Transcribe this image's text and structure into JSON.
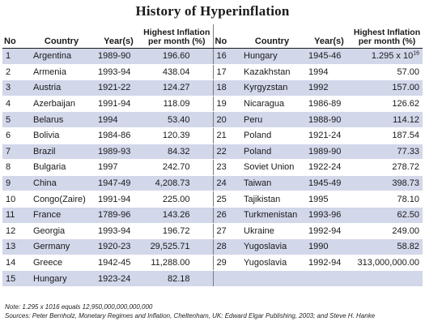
{
  "title": "History of Hyperinflation",
  "headers": {
    "no": "No",
    "country": "Country",
    "years": "Year(s)",
    "inflation_line1": "Highest Inflation",
    "inflation_line2": "per month (%)"
  },
  "rows_left": [
    {
      "no": "1",
      "country": "Argentina",
      "years": "1989-90",
      "rate": "196.60"
    },
    {
      "no": "2",
      "country": "Armenia",
      "years": "1993-94",
      "rate": "438.04"
    },
    {
      "no": "3",
      "country": "Austria",
      "years": "1921-22",
      "rate": "124.27"
    },
    {
      "no": "4",
      "country": "Azerbaijan",
      "years": "1991-94",
      "rate": "118.09"
    },
    {
      "no": "5",
      "country": "Belarus",
      "years": "1994",
      "rate": "53.40"
    },
    {
      "no": "6",
      "country": "Bolivia",
      "years": "1984-86",
      "rate": "120.39"
    },
    {
      "no": "7",
      "country": "Brazil",
      "years": "1989-93",
      "rate": "84.32"
    },
    {
      "no": "8",
      "country": "Bulgaria",
      "years": "1997",
      "rate": "242.70"
    },
    {
      "no": "9",
      "country": "China",
      "years": "1947-49",
      "rate": "4,208.73"
    },
    {
      "no": "10",
      "country": "Congo(Zaire)",
      "years": "1991-94",
      "rate": "225.00"
    },
    {
      "no": "11",
      "country": "France",
      "years": "1789-96",
      "rate": "143.26"
    },
    {
      "no": "12",
      "country": "Georgia",
      "years": "1993-94",
      "rate": "196.72"
    },
    {
      "no": "13",
      "country": "Germany",
      "years": "1920-23",
      "rate": "29,525.71"
    },
    {
      "no": "14",
      "country": "Greece",
      "years": "1942-45",
      "rate": "11,288.00"
    },
    {
      "no": "15",
      "country": "Hungary",
      "years": "1923-24",
      "rate": "82.18"
    }
  ],
  "rows_right": [
    {
      "no": "16",
      "country": "Hungary",
      "years": "1945-46",
      "rate": "1.295 x 10",
      "rate_sup": "16"
    },
    {
      "no": "17",
      "country": "Kazakhstan",
      "years": "1994",
      "rate": "57.00"
    },
    {
      "no": "18",
      "country": "Kyrgyzstan",
      "years": "1992",
      "rate": "157.00"
    },
    {
      "no": "19",
      "country": "Nicaragua",
      "years": "1986-89",
      "rate": "126.62"
    },
    {
      "no": "20",
      "country": "Peru",
      "years": "1988-90",
      "rate": "114.12"
    },
    {
      "no": "21",
      "country": "Poland",
      "years": "1921-24",
      "rate": "187.54"
    },
    {
      "no": "22",
      "country": "Poland",
      "years": "1989-90",
      "rate": "77.33"
    },
    {
      "no": "23",
      "country": "Soviet Union",
      "years": "1922-24",
      "rate": "278.72"
    },
    {
      "no": "24",
      "country": "Taiwan",
      "years": "1945-49",
      "rate": "398.73"
    },
    {
      "no": "25",
      "country": "Tajikistan",
      "years": "1995",
      "rate": "78.10"
    },
    {
      "no": "26",
      "country": "Turkmenistan",
      "years": "1993-96",
      "rate": "62.50"
    },
    {
      "no": "27",
      "country": "Ukraine",
      "years": "1992-94",
      "rate": "249.00"
    },
    {
      "no": "28",
      "country": "Yugoslavia",
      "years": "1990",
      "rate": "58.82"
    },
    {
      "no": "29",
      "country": "Yugoslavia",
      "years": "1992-94",
      "rate": "313,000,000.00"
    },
    {
      "no": "",
      "country": "",
      "years": "",
      "rate": ""
    }
  ],
  "notes": [
    "Note: 1.295 x 1016 equals 12,950,000,000,000,000",
    "Sources: Peter Bernholz, Monetary Regimes and Inflation, Cheltenham, UK: Edward Elgar Publishing, 2003; and Steve H. Hanke"
  ]
}
